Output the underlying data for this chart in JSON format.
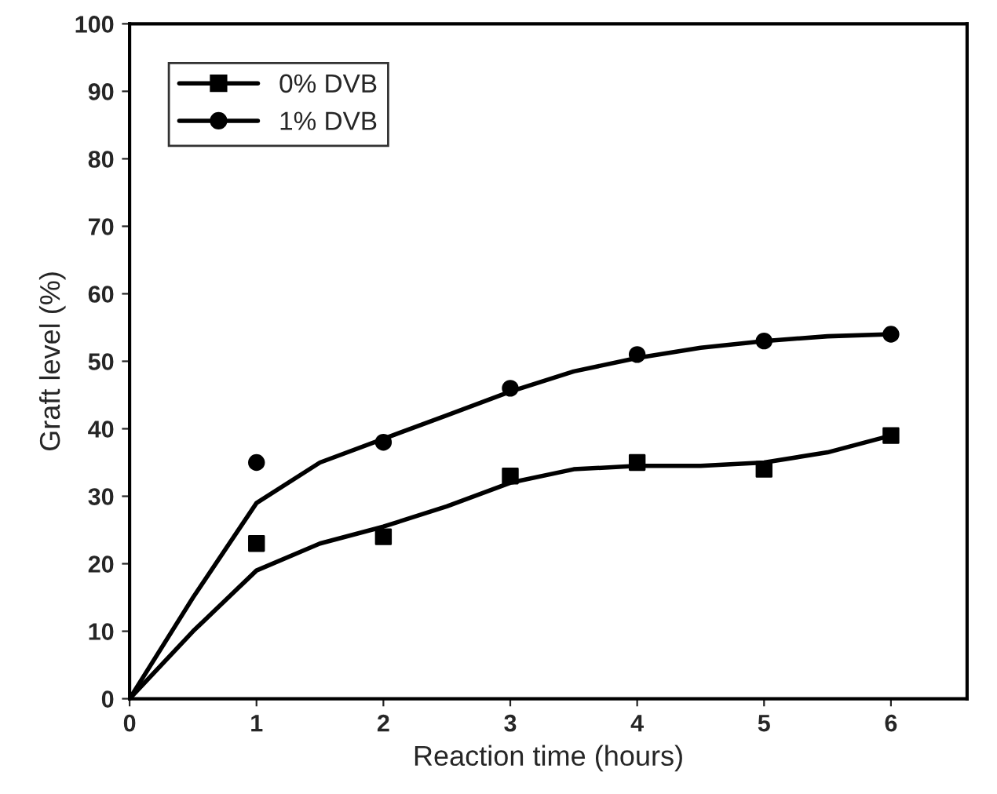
{
  "chart_data": {
    "type": "scatter",
    "xlabel": "Reaction time (hours)",
    "ylabel": "Graft level (%)",
    "xlim": [
      0,
      6.6
    ],
    "xticks": [
      0,
      1,
      2,
      3,
      4,
      5,
      6
    ],
    "ylim": [
      0,
      100
    ],
    "yticks": [
      0,
      10,
      20,
      30,
      40,
      50,
      60,
      70,
      80,
      90,
      100
    ],
    "grid": false,
    "legend": "top left",
    "series": [
      {
        "name": "0% DVB",
        "marker": "square",
        "color": "#000000",
        "x": [
          1,
          2,
          3,
          4,
          5,
          6
        ],
        "values": [
          23,
          24,
          33,
          35,
          34,
          39
        ]
      },
      {
        "name": "1% DVB",
        "marker": "circle",
        "color": "#000000",
        "x": [
          1,
          2,
          3,
          4,
          5,
          6
        ],
        "values": [
          35,
          38,
          46,
          51,
          53,
          54
        ]
      },
      {
        "type": "line",
        "color": "#000000",
        "line_style": "solid",
        "x": [
          0,
          0.5,
          1,
          1.5,
          2,
          2.5,
          3,
          3.5,
          4,
          4.5,
          5,
          5.5,
          6
        ],
        "values": [
          0,
          10,
          19,
          23,
          25.5,
          28.5,
          32,
          34,
          34.5,
          34.5,
          35,
          36.5,
          39
        ]
      },
      {
        "type": "line",
        "color": "#000000",
        "line_style": "solid",
        "x": [
          0,
          0.5,
          1,
          1.5,
          2,
          2.5,
          3,
          3.5,
          4,
          4.5,
          5,
          5.5,
          6
        ],
        "values": [
          0,
          15,
          29,
          35,
          38.5,
          42,
          45.5,
          48.5,
          50.5,
          52,
          53,
          53.7,
          54
        ]
      }
    ]
  }
}
